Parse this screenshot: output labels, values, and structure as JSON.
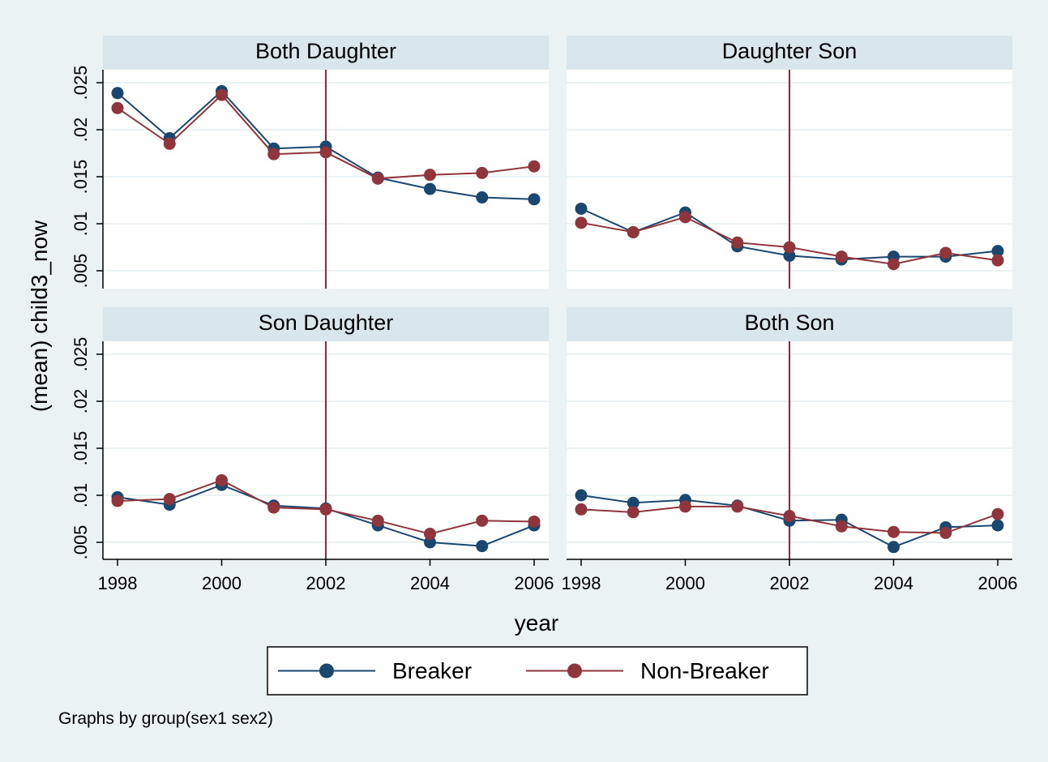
{
  "chart_data": {
    "type": "line",
    "xlabel": "year",
    "ylabel": "(mean) child3_now",
    "xlim": [
      1998,
      2006
    ],
    "ylim": [
      0.003,
      0.0265
    ],
    "x_ticks": [
      1998,
      2000,
      2002,
      2004,
      2006
    ],
    "x_tick_labels": [
      "1998",
      "2000",
      "2002",
      "2004",
      "2006"
    ],
    "y_ticks": [
      0.005,
      0.01,
      0.015,
      0.02,
      0.025
    ],
    "y_tick_labels": [
      ".005",
      ".01",
      ".015",
      ".02",
      ".025"
    ],
    "x": [
      1998,
      1999,
      2000,
      2001,
      2002,
      2003,
      2004,
      2005,
      2006
    ],
    "reference_line_x": 2002,
    "reference_line_color": "#a6243a",
    "grid": true,
    "legend_position": "bottom",
    "legend": [
      {
        "name": "Breaker",
        "color": "#1a476f"
      },
      {
        "name": "Non-Breaker",
        "color": "#90353b"
      }
    ],
    "note": "Graphs by group(sex1 sex2)",
    "panels": [
      {
        "title": "Both Daughter",
        "series": [
          {
            "name": "Breaker",
            "values": [
              0.0239,
              0.0191,
              0.0241,
              0.018,
              0.0182,
              0.0149,
              0.0137,
              0.0128,
              0.0126
            ]
          },
          {
            "name": "Non-Breaker",
            "values": [
              0.0223,
              0.0185,
              0.0237,
              0.0174,
              0.0176,
              0.0148,
              0.0152,
              0.0154,
              0.0161
            ]
          }
        ]
      },
      {
        "title": "Daughter Son",
        "series": [
          {
            "name": "Breaker",
            "values": [
              0.0116,
              0.0091,
              0.0112,
              0.0076,
              0.0066,
              0.0062,
              0.0065,
              0.0065,
              0.0071
            ]
          },
          {
            "name": "Non-Breaker",
            "values": [
              0.0101,
              0.0091,
              0.0107,
              0.008,
              0.0075,
              0.0065,
              0.0057,
              0.0069,
              0.0061
            ]
          }
        ]
      },
      {
        "title": "Son Daughter",
        "series": [
          {
            "name": "Breaker",
            "values": [
              0.0098,
              0.009,
              0.0111,
              0.0089,
              0.0086,
              0.0068,
              0.005,
              0.0046,
              0.0068
            ]
          },
          {
            "name": "Non-Breaker",
            "values": [
              0.0094,
              0.0096,
              0.0116,
              0.0087,
              0.0085,
              0.0073,
              0.0059,
              0.0073,
              0.0072
            ]
          }
        ]
      },
      {
        "title": "Both Son",
        "series": [
          {
            "name": "Breaker",
            "values": [
              0.01,
              0.0092,
              0.0095,
              0.0089,
              0.0073,
              0.0074,
              0.0045,
              0.0066,
              0.0068
            ]
          },
          {
            "name": "Non-Breaker",
            "values": [
              0.0085,
              0.0082,
              0.0088,
              0.0088,
              0.0078,
              0.0067,
              0.0061,
              0.006,
              0.008
            ]
          }
        ]
      }
    ]
  }
}
